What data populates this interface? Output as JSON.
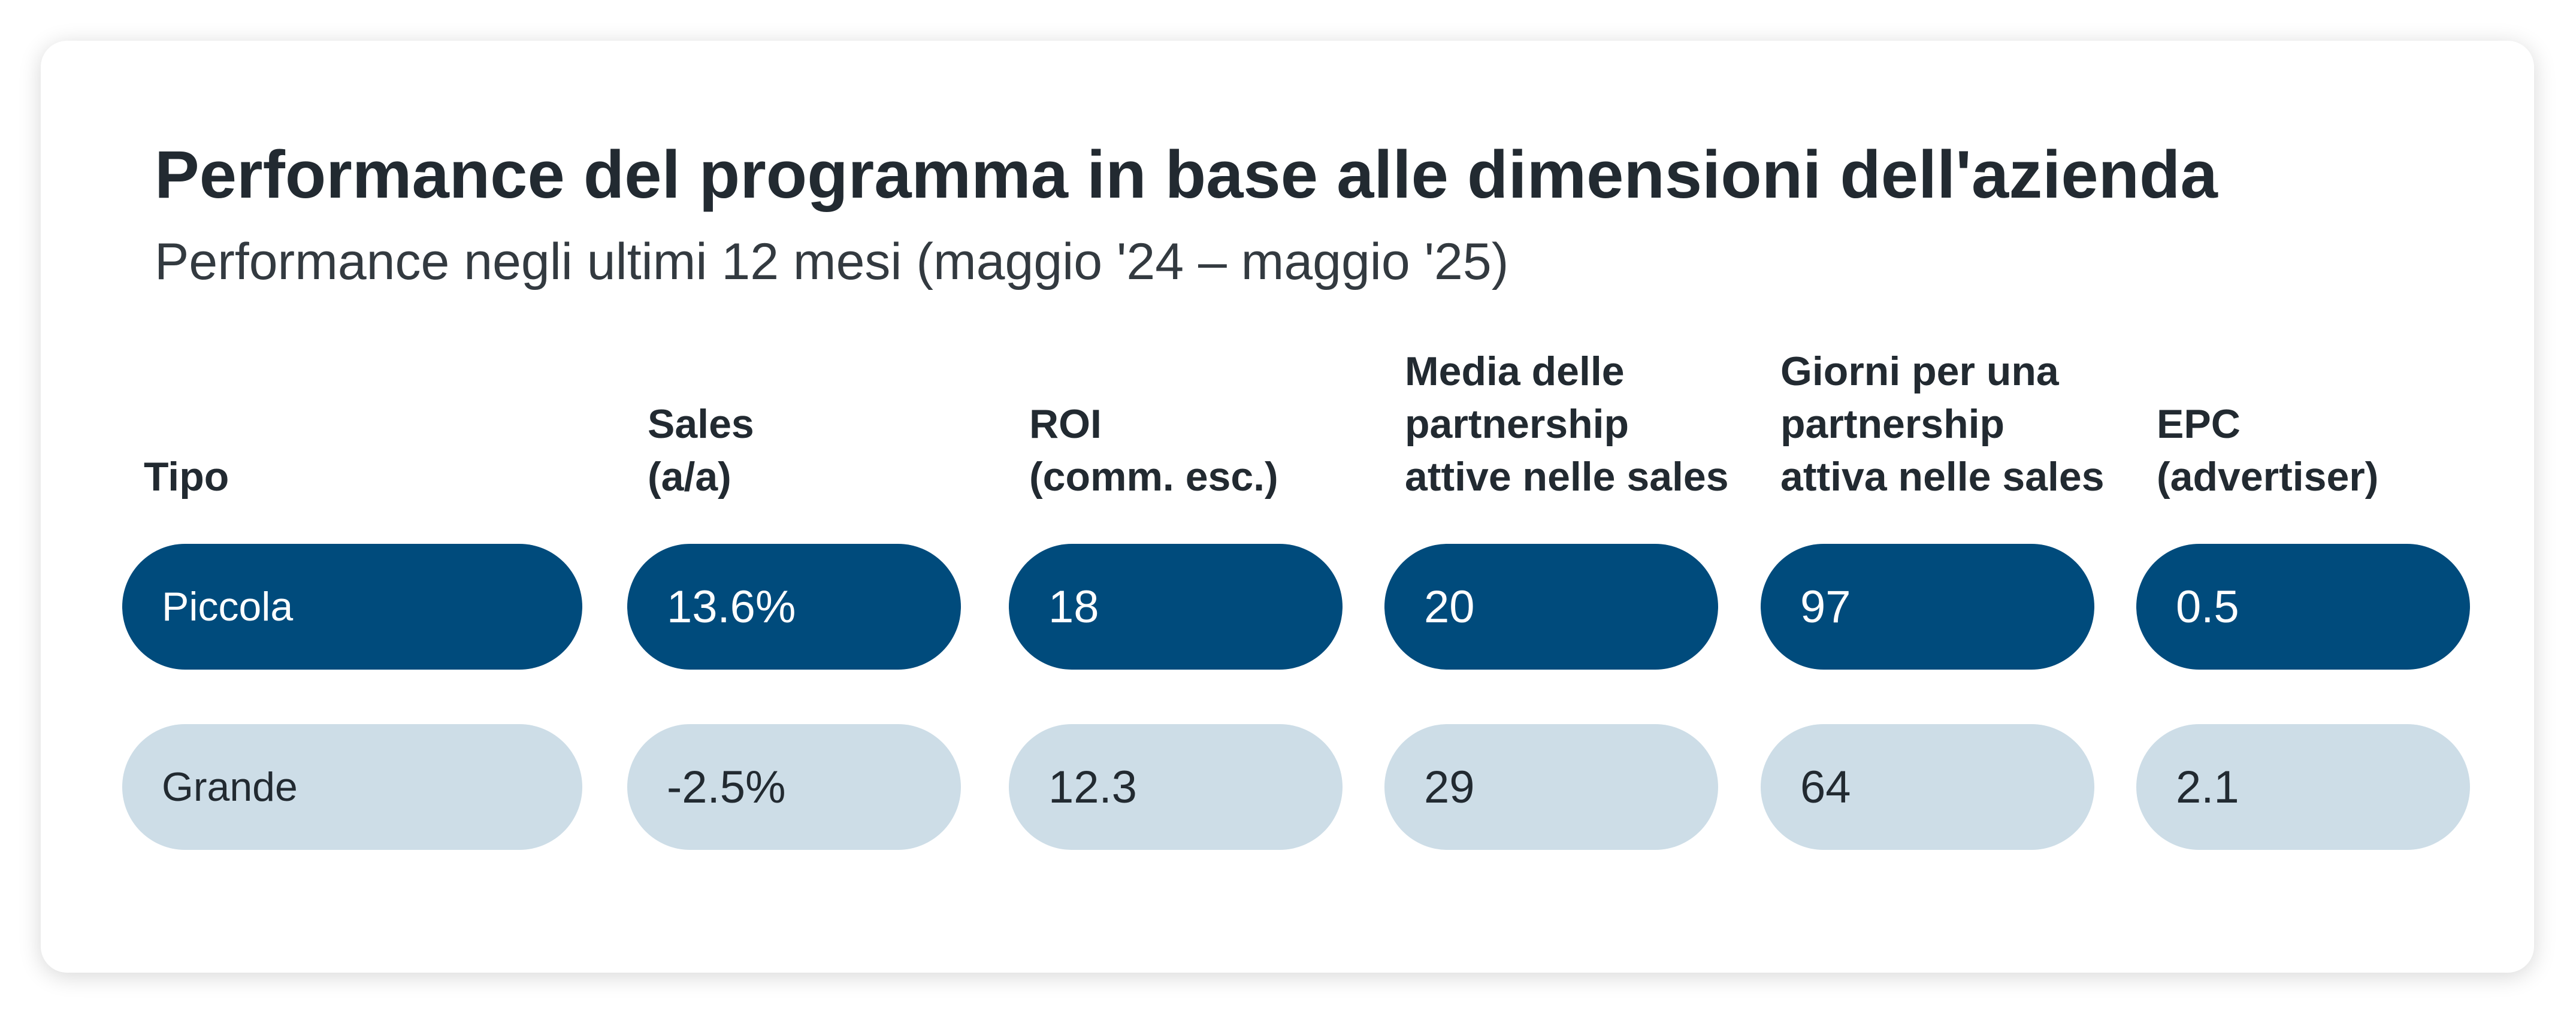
{
  "card": {
    "title": "Performance del programma in base alle dimensioni dell'azienda",
    "subtitle": "Performance negli ultimi 12 mesi (maggio '24 – maggio '25)"
  },
  "chart_data": {
    "type": "table",
    "title": "Performance del programma in base alle dimensioni dell'azienda",
    "subtitle": "Performance negli ultimi 12 mesi (maggio '24 – maggio '25)",
    "columns": [
      {
        "lines": [
          "Tipo"
        ]
      },
      {
        "lines": [
          "Sales",
          "(a/a)"
        ]
      },
      {
        "lines": [
          "ROI",
          "(comm. esc.)"
        ]
      },
      {
        "lines": [
          "Media delle",
          "partnership",
          "attive nelle sales"
        ]
      },
      {
        "lines": [
          "Giorni per una",
          "partnership",
          "attiva nelle sales"
        ]
      },
      {
        "lines": [
          "EPC",
          "(advertiser)"
        ]
      }
    ],
    "rows": [
      {
        "type": "Piccola",
        "values": [
          "13.6%",
          "18",
          "20",
          "97",
          "0.5"
        ]
      },
      {
        "type": "Grande",
        "values": [
          "-2.5%",
          "12.3",
          "29",
          "64",
          "2.1"
        ]
      }
    ],
    "colors": {
      "row_highlight": "#004b7c",
      "row_normal": "#cddde7",
      "text_on_highlight": "#ffffff",
      "text": "#222a31"
    }
  }
}
